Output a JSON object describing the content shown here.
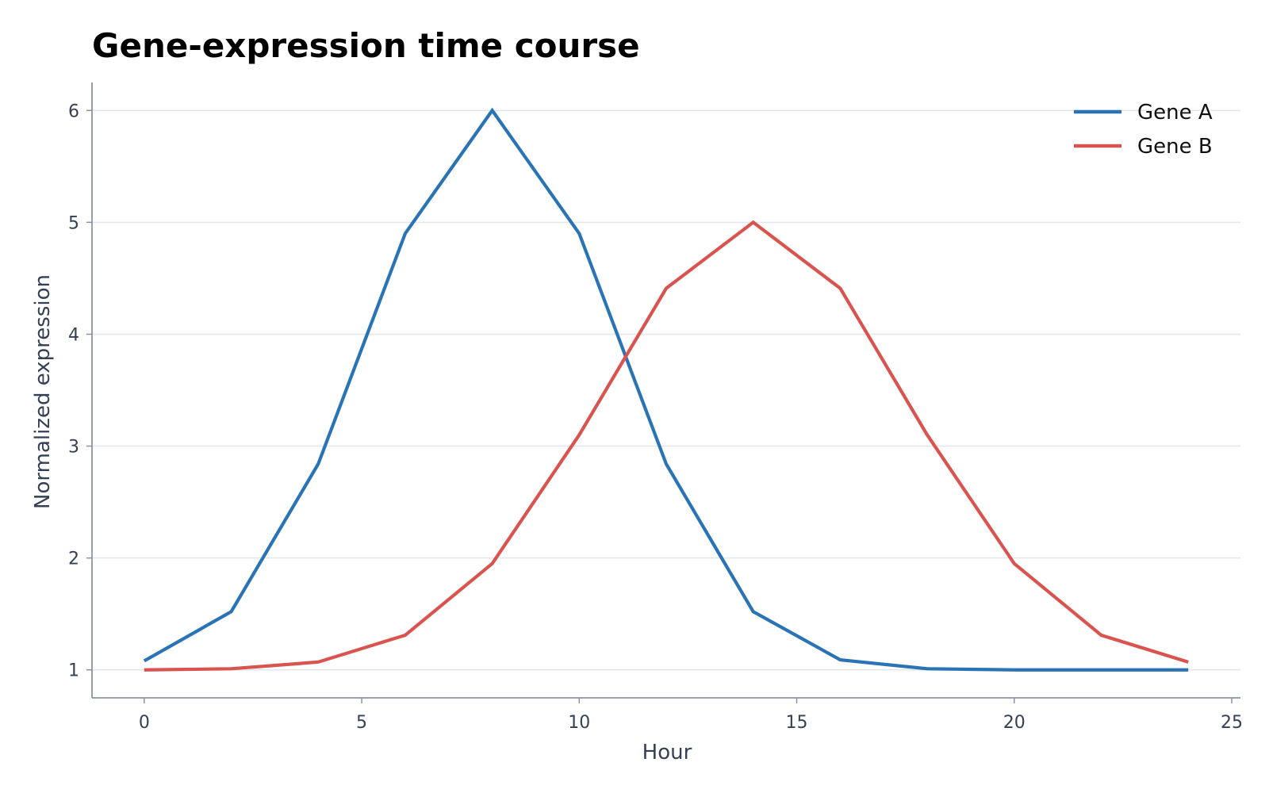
{
  "chart_data": {
    "type": "line",
    "title": "Gene-expression time course",
    "xlabel": "Hour",
    "ylabel": "Normalized expression",
    "xlim": [
      -1.2,
      25.2
    ],
    "ylim": [
      0.75,
      6.25
    ],
    "x_ticks": [
      0,
      5,
      10,
      15,
      20,
      25
    ],
    "y_ticks": [
      1,
      2,
      3,
      4,
      5,
      6
    ],
    "grid": "horizontal",
    "legend_position": "top-right",
    "x": [
      0,
      2,
      4,
      6,
      8,
      10,
      12,
      14,
      16,
      18,
      20,
      22,
      24
    ],
    "series": [
      {
        "name": "Gene A",
        "color": "#2a74b5",
        "values": [
          1.08,
          1.52,
          2.84,
          4.9,
          6.0,
          4.9,
          2.84,
          1.52,
          1.09,
          1.01,
          1.0,
          1.0,
          1.0
        ]
      },
      {
        "name": "Gene B",
        "color": "#d9534f",
        "values": [
          1.0,
          1.01,
          1.07,
          1.31,
          1.95,
          3.1,
          4.41,
          5.0,
          4.41,
          3.1,
          1.95,
          1.31,
          1.07
        ]
      }
    ]
  },
  "colors": {
    "grid": "#e2e6ee",
    "axis": "#8a94a6",
    "tick_text": "#344054"
  }
}
